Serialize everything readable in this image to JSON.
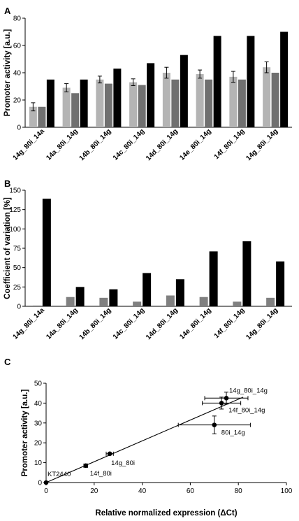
{
  "chart_data": [
    {
      "panel": "A",
      "type": "bar",
      "ylabel": "Promoter activity [a.u.]",
      "xlabel": "",
      "ylim": [
        0,
        80
      ],
      "yticks": [
        0,
        20,
        40,
        60,
        80
      ],
      "categories": [
        "14g_80i_14a",
        "14a_80i_14g",
        "14b_80i_14g",
        "14c_80i_14g",
        "14d_80i_14g",
        "14e_80i_14g",
        "14f_80i_14g",
        "14g_80i_14g"
      ],
      "series": [
        {
          "color": "#b4b4b4",
          "values": [
            15,
            29,
            35,
            33,
            40,
            39,
            37,
            44
          ],
          "errors": [
            3,
            3,
            2.5,
            2.5,
            4,
            3,
            4,
            4
          ]
        },
        {
          "color": "#707070",
          "values": [
            15,
            25,
            32,
            31,
            35,
            35,
            35,
            40
          ],
          "errors": [
            0,
            0,
            0,
            0,
            0,
            0,
            0,
            0
          ]
        },
        {
          "color": "#000000",
          "values": [
            35,
            35,
            43,
            47,
            53,
            67,
            67,
            70
          ],
          "errors": [
            0,
            0,
            0,
            0,
            0,
            0,
            0,
            0
          ]
        }
      ],
      "grid": false,
      "legend": "none"
    },
    {
      "panel": "B",
      "type": "bar",
      "ylabel": "Coefficient of variation [%]",
      "xlabel": "",
      "ylim": [
        0,
        150
      ],
      "yticks": [
        0,
        25,
        50,
        75,
        100,
        125,
        150
      ],
      "categories": [
        "14g_80i_14a",
        "14a_80i_14g",
        "14b_80i_14g",
        "14c_80i_14g",
        "14d_80i_14g",
        "14e_80i_14g",
        "14f_80i_14g",
        "14g_80i_14g"
      ],
      "series": [
        {
          "color": "#808080",
          "values": [
            1,
            12,
            11,
            6,
            14,
            12,
            6,
            11
          ]
        },
        {
          "color": "#000000",
          "values": [
            139,
            25,
            22,
            43,
            35,
            71,
            84,
            58
          ]
        }
      ],
      "grid": false,
      "legend": "none"
    },
    {
      "panel": "C",
      "type": "scatter",
      "xlabel": "Relative normalized expression (ΔCt)",
      "ylabel": "Promoter activity [a.u.]",
      "xlim": [
        0,
        100
      ],
      "ylim": [
        0,
        50
      ],
      "xticks": [
        0,
        20,
        40,
        60,
        80,
        100
      ],
      "yticks": [
        0,
        10,
        20,
        30,
        40,
        50
      ],
      "points": [
        {
          "label": "KT2440",
          "x": 0,
          "y": 0,
          "xerr": 0,
          "yerr": 0
        },
        {
          "label": "14f_80i",
          "x": 16.5,
          "y": 8.5,
          "xerr": 0.8,
          "yerr": 0.5
        },
        {
          "label": "14g_80i",
          "x": 26.5,
          "y": 14.5,
          "xerr": 1.5,
          "yerr": 0.5
        },
        {
          "label": "80i_14g",
          "x": 70,
          "y": 29,
          "xerr": 15,
          "yerr": 4.5
        },
        {
          "label": "14f_80i_14g",
          "x": 73,
          "y": 40,
          "xerr": 8,
          "yerr": 3
        },
        {
          "label": "14g_80i_14g",
          "x": 75,
          "y": 42.5,
          "xerr": 9,
          "yerr": 3
        }
      ],
      "fit_line": {
        "x": [
          0,
          82
        ],
        "y": [
          0,
          43
        ]
      },
      "grid": false,
      "legend": "none"
    }
  ],
  "panel_letters": {
    "a": "A",
    "b": "B",
    "c": "C"
  }
}
